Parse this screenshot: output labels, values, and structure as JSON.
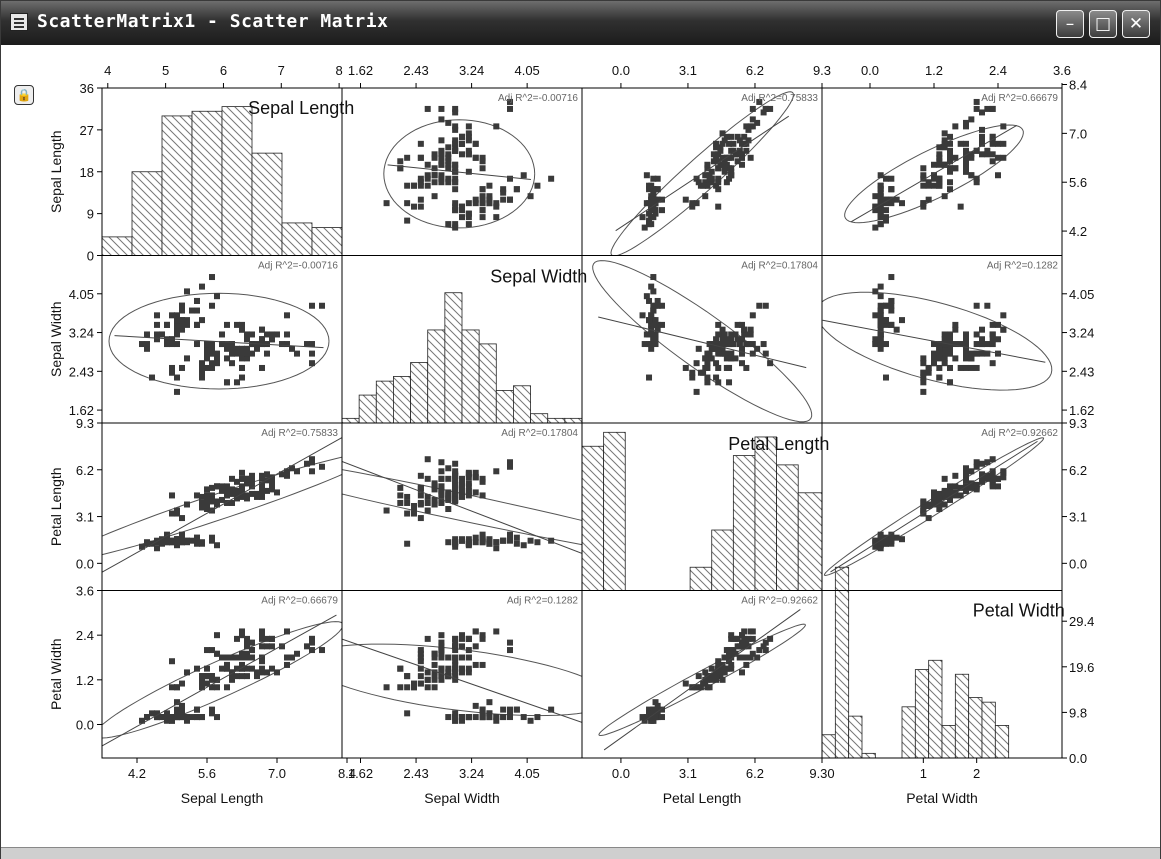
{
  "window": {
    "title": "ScatterMatrix1 - Scatter Matrix",
    "minimize_glyph": "–",
    "maximize_glyph": "□",
    "close_glyph": "✕",
    "lock_glyph": "🔒"
  },
  "colors": {
    "frame": "#000000",
    "marker": "#3a3a3a",
    "ellipse": "#555555",
    "hatch": "#777777"
  },
  "chart_data": {
    "type": "scatter",
    "variables": [
      "Sepal Length",
      "Sepal Width",
      "Petal Length",
      "Petal Width"
    ],
    "axis_labels": {
      "bottom": [
        "Sepal Length",
        "Sepal Width",
        "Petal Length",
        "Petal Width"
      ],
      "left": [
        "Sepal Length",
        "Sepal Width",
        "Petal Length",
        "Petal Width"
      ]
    },
    "value_ranges": [
      [
        3.5,
        8.3
      ],
      [
        1.35,
        4.85
      ],
      [
        -1.8,
        9.3
      ],
      [
        -0.9,
        3.6
      ]
    ],
    "bottom_ticks": [
      [
        4.2,
        5.6,
        7.0,
        8.4
      ],
      [
        1.62,
        2.43,
        3.24,
        4.05
      ],
      [
        0.0,
        3.1,
        6.2,
        9.3
      ],
      [
        1,
        2
      ]
    ],
    "bottom_tick_labels": [
      [
        "4.2",
        "5.6",
        "7.0",
        "8.4"
      ],
      [
        "1.62",
        "2.43",
        "3.24",
        "4.05"
      ],
      [
        "0.0",
        "3.1",
        "6.2",
        "9.30"
      ],
      [
        "1",
        "2"
      ]
    ],
    "top_ticks": [
      [
        4,
        5,
        6,
        7,
        8
      ],
      [
        1.62,
        2.43,
        3.24,
        4.05
      ],
      [
        0.0,
        3.1,
        6.2,
        9.3
      ],
      [
        0.0,
        1.2,
        2.4,
        3.6
      ]
    ],
    "top_tick_labels": [
      [
        "4",
        "5",
        "6",
        "7",
        "8"
      ],
      [
        "1.62",
        "2.43",
        "3.24",
        "4.05"
      ],
      [
        "0.0",
        "3.1",
        "6.2",
        "9.3"
      ],
      [
        "0.0",
        "1.2",
        "2.4",
        "3.6"
      ]
    ],
    "left_ticks": [
      [
        0,
        9,
        18,
        27,
        36
      ],
      [
        1.62,
        2.43,
        3.24,
        4.05
      ],
      [
        0.0,
        3.1,
        6.2,
        9.3
      ],
      [
        0.0,
        1.2,
        2.4,
        3.6
      ]
    ],
    "left_tick_labels": [
      [
        "0",
        "9",
        "18",
        "27",
        "36"
      ],
      [
        "1.62",
        "2.43",
        "3.24",
        "4.05"
      ],
      [
        "0.0",
        "3.1",
        "6.2",
        "9.3"
      ],
      [
        "0.0",
        "1.2",
        "2.4",
        "3.6"
      ]
    ],
    "right_ticks": [
      [
        4.2,
        5.6,
        7.0,
        8.4
      ],
      [
        1.62,
        2.43,
        3.24,
        4.05
      ],
      [
        0.0,
        3.1,
        6.2,
        9.3
      ],
      [
        0.0,
        9.8,
        19.6,
        29.4
      ]
    ],
    "right_tick_labels": [
      [
        "4.2",
        "5.6",
        "7.0",
        "8.4"
      ],
      [
        "1.62",
        "2.43",
        "3.24",
        "4.05"
      ],
      [
        "0.0",
        "3.1",
        "6.2",
        "9.3"
      ],
      [
        "0.0",
        "9.8",
        "19.6",
        "29.4"
      ]
    ],
    "diagonal_titles": [
      "Sepal Length",
      "Sepal Width",
      "Petal Length",
      "Petal Width"
    ],
    "histograms": [
      {
        "variable": "Sepal Length",
        "ymax": 36,
        "bin_edges": [
          3.5,
          4.1,
          4.7,
          5.3,
          5.9,
          6.5,
          7.1,
          7.7,
          8.3
        ],
        "counts": [
          4,
          18,
          30,
          31,
          32,
          22,
          7,
          6
        ]
      },
      {
        "variable": "Sepal Width",
        "ymax": 36,
        "bin_edges": [
          1.35,
          1.6,
          1.85,
          2.1,
          2.35,
          2.6,
          2.85,
          3.1,
          3.35,
          3.6,
          3.85,
          4.1,
          4.35,
          4.6,
          4.85
        ],
        "counts": [
          1,
          6,
          9,
          10,
          13,
          20,
          28,
          20,
          17,
          7,
          8,
          2,
          1,
          1
        ]
      },
      {
        "variable": "Petal Length",
        "ymax": 36,
        "bin_edges": [
          -1.8,
          -0.8,
          0.2,
          1.2,
          2.2,
          3.2,
          4.2,
          5.2,
          6.2,
          7.2,
          8.2,
          9.3
        ],
        "counts": [
          31,
          34,
          0,
          0,
          0,
          5,
          13,
          29,
          33,
          27,
          21
        ]
      },
      {
        "variable": "Petal Width",
        "ymax": 36,
        "bin_edges": [
          -0.9,
          -0.65,
          -0.4,
          -0.15,
          0.1,
          0.35,
          0.6,
          0.85,
          1.1,
          1.35,
          1.6,
          1.85,
          2.1,
          2.35,
          2.6
        ],
        "counts": [
          5,
          41,
          9,
          1,
          0,
          0,
          11,
          19,
          21,
          7,
          18,
          13,
          12,
          7
        ]
      }
    ],
    "cells": [
      {
        "row": 0,
        "col": 1,
        "r2_label": "Adj R^2=-0.00716",
        "x_var": "Sepal Width",
        "y_var": "Sepal Length",
        "slope": -0.2,
        "intercept": 6.5,
        "ellipse": {
          "cx": 3.06,
          "cy": 5.84,
          "a": 1.1,
          "b": 1.55,
          "angle": 0
        }
      },
      {
        "row": 0,
        "col": 2,
        "r2_label": "Adj R^2=0.75833",
        "x_var": "Petal Length",
        "y_var": "Sepal Length",
        "slope": 0.41,
        "intercept": 4.31,
        "ellipse": {
          "cx": 3.76,
          "cy": 5.84,
          "a": 4.8,
          "b": 0.55,
          "angle": 0.5
        }
      },
      {
        "row": 0,
        "col": 3,
        "r2_label": "Adj R^2=0.66679",
        "x_var": "Petal Width",
        "y_var": "Sepal Length",
        "slope": 0.89,
        "intercept": 4.78,
        "ellipse": {
          "cx": 1.2,
          "cy": 5.84,
          "a": 2.1,
          "b": 0.6,
          "angle": 0.68
        }
      },
      {
        "row": 1,
        "col": 0,
        "r2_label": "Adj R^2=-0.00716",
        "x_var": "Sepal Length",
        "y_var": "Sepal Width",
        "slope": -0.06,
        "intercept": 3.4,
        "ellipse": {
          "cx": 5.84,
          "cy": 3.06,
          "a": 2.2,
          "b": 1.0,
          "angle": 0
        }
      },
      {
        "row": 1,
        "col": 2,
        "r2_label": "Adj R^2=0.17804",
        "x_var": "Petal Length",
        "y_var": "Sepal Width",
        "slope": -0.11,
        "intercept": 3.45,
        "ellipse": {
          "cx": 3.76,
          "cy": 3.06,
          "a": 5.3,
          "b": 0.65,
          "angle": -0.3
        }
      },
      {
        "row": 1,
        "col": 3,
        "r2_label": "Adj R^2=0.1282",
        "x_var": "Petal Width",
        "y_var": "Sepal Width",
        "slope": -0.21,
        "intercept": 3.31,
        "ellipse": {
          "cx": 1.2,
          "cy": 3.06,
          "a": 2.3,
          "b": 0.8,
          "angle": -0.3
        }
      },
      {
        "row": 2,
        "col": 0,
        "r2_label": "Adj R^2=0.75833",
        "x_var": "Sepal Length",
        "y_var": "Petal Length",
        "slope": 1.86,
        "intercept": -7.1,
        "ellipse": {
          "cx": 5.84,
          "cy": 3.76,
          "a": 4.8,
          "b": 0.6,
          "angle": 0.85
        }
      },
      {
        "row": 2,
        "col": 1,
        "r2_label": "Adj R^2=0.17804",
        "x_var": "Sepal Width",
        "y_var": "Petal Length",
        "slope": -1.74,
        "intercept": 9.1,
        "ellipse": {
          "cx": 3.06,
          "cy": 3.76,
          "a": 5.3,
          "b": 0.65,
          "angle": -0.78
        }
      },
      {
        "row": 2,
        "col": 3,
        "r2_label": "Adj R^2=0.92662",
        "x_var": "Petal Width",
        "y_var": "Petal Length",
        "slope": 2.23,
        "intercept": 1.08,
        "ellipse": {
          "cx": 1.2,
          "cy": 3.76,
          "a": 5.0,
          "b": 0.25,
          "angle": 1.15
        }
      },
      {
        "row": 3,
        "col": 0,
        "r2_label": "Adj R^2=0.66679",
        "x_var": "Sepal Length",
        "y_var": "Petal Width",
        "slope": 0.75,
        "intercept": -3.2,
        "ellipse": {
          "cx": 5.84,
          "cy": 1.2,
          "a": 2.9,
          "b": 0.45,
          "angle": 0.55
        }
      },
      {
        "row": 3,
        "col": 1,
        "r2_label": "Adj R^2=0.1282",
        "x_var": "Sepal Width",
        "y_var": "Petal Width",
        "slope": -0.64,
        "intercept": 3.16,
        "ellipse": {
          "cx": 3.06,
          "cy": 1.2,
          "a": 2.3,
          "b": 0.8,
          "angle": -0.25
        }
      },
      {
        "row": 3,
        "col": 2,
        "r2_label": "Adj R^2=0.92662",
        "x_var": "Petal Length",
        "y_var": "Petal Width",
        "slope": 0.416,
        "intercept": -0.36,
        "ellipse": {
          "cx": 3.76,
          "cy": 1.2,
          "a": 5.0,
          "b": 0.25,
          "angle": 0.3
        }
      }
    ],
    "points": {
      "species_A": {
        "Sepal Length": [
          5.1,
          4.9,
          4.7,
          4.6,
          5.0,
          5.4,
          4.6,
          5.0,
          4.4,
          4.9,
          5.4,
          4.8,
          4.8,
          4.3,
          5.8,
          5.7,
          5.4,
          5.1,
          5.7,
          5.1,
          5.4,
          5.1,
          4.6,
          5.1,
          4.8,
          5.0,
          5.0,
          5.2,
          5.2,
          4.7,
          4.8,
          5.4,
          5.2,
          5.5,
          4.9,
          5.0,
          5.5,
          4.9,
          4.4,
          5.1,
          5.0,
          4.5,
          4.4,
          5.0,
          5.1,
          4.8,
          5.1,
          4.6,
          5.3,
          5.0
        ],
        "Sepal Width": [
          3.5,
          3.0,
          3.2,
          3.1,
          3.6,
          3.9,
          3.4,
          3.4,
          2.9,
          3.1,
          3.7,
          3.4,
          3.0,
          3.0,
          4.0,
          4.4,
          3.9,
          3.5,
          3.8,
          3.8,
          3.4,
          3.7,
          3.6,
          3.3,
          3.4,
          3.0,
          3.4,
          3.5,
          3.4,
          3.2,
          3.1,
          3.4,
          4.1,
          4.2,
          3.1,
          3.2,
          3.5,
          3.6,
          3.0,
          3.4,
          3.5,
          2.3,
          3.2,
          3.5,
          3.8,
          3.0,
          3.8,
          3.2,
          3.7,
          3.3
        ],
        "Petal Length": [
          1.4,
          1.4,
          1.3,
          1.5,
          1.4,
          1.7,
          1.4,
          1.5,
          1.4,
          1.5,
          1.5,
          1.6,
          1.4,
          1.1,
          1.2,
          1.5,
          1.3,
          1.4,
          1.7,
          1.5,
          1.7,
          1.5,
          1.0,
          1.7,
          1.9,
          1.6,
          1.6,
          1.5,
          1.4,
          1.6,
          1.6,
          1.5,
          1.5,
          1.4,
          1.5,
          1.2,
          1.3,
          1.4,
          1.3,
          1.5,
          1.3,
          1.3,
          1.3,
          1.6,
          1.9,
          1.4,
          1.6,
          1.4,
          1.5,
          1.4
        ],
        "Petal Width": [
          0.2,
          0.2,
          0.2,
          0.2,
          0.2,
          0.4,
          0.3,
          0.2,
          0.2,
          0.1,
          0.2,
          0.2,
          0.1,
          0.1,
          0.2,
          0.4,
          0.4,
          0.3,
          0.3,
          0.3,
          0.2,
          0.4,
          0.2,
          0.5,
          0.2,
          0.2,
          0.4,
          0.2,
          0.2,
          0.2,
          0.2,
          0.4,
          0.1,
          0.2,
          0.2,
          0.2,
          0.2,
          0.1,
          0.2,
          0.2,
          0.3,
          0.3,
          0.2,
          0.6,
          0.4,
          0.3,
          0.2,
          0.2,
          0.2,
          0.2
        ]
      },
      "species_B": {
        "Sepal Length": [
          7.0,
          6.4,
          6.9,
          5.5,
          6.5,
          5.7,
          6.3,
          4.9,
          6.6,
          5.2,
          5.0,
          5.9,
          6.0,
          6.1,
          5.6,
          6.7,
          5.6,
          5.8,
          6.2,
          5.6,
          5.9,
          6.1,
          6.3,
          6.1,
          6.4,
          6.6,
          6.8,
          6.7,
          6.0,
          5.7,
          5.5,
          5.5,
          5.8,
          6.0,
          5.4,
          6.0,
          6.7,
          6.3,
          5.6,
          5.5,
          5.5,
          6.1,
          5.8,
          5.0,
          5.6,
          5.7,
          5.7,
          6.2,
          5.1,
          5.7
        ],
        "Sepal Width": [
          3.2,
          3.2,
          3.1,
          2.3,
          2.8,
          2.8,
          3.3,
          2.4,
          2.9,
          2.7,
          2.0,
          3.0,
          2.2,
          2.9,
          2.9,
          3.1,
          3.0,
          2.7,
          2.2,
          2.5,
          3.2,
          2.8,
          2.5,
          2.8,
          2.9,
          3.0,
          2.8,
          3.0,
          2.9,
          2.6,
          2.4,
          2.4,
          2.7,
          2.7,
          3.0,
          3.4,
          3.1,
          2.3,
          3.0,
          2.5,
          2.6,
          3.0,
          2.6,
          2.3,
          2.7,
          3.0,
          2.9,
          2.9,
          2.5,
          2.8
        ],
        "Petal Length": [
          4.7,
          4.5,
          4.9,
          4.0,
          4.6,
          4.5,
          4.7,
          3.3,
          4.6,
          3.9,
          3.5,
          4.2,
          4.0,
          4.7,
          3.6,
          4.4,
          4.5,
          4.1,
          4.5,
          3.9,
          4.8,
          4.0,
          4.9,
          4.7,
          4.3,
          4.4,
          4.8,
          5.0,
          4.5,
          3.5,
          3.8,
          3.7,
          3.9,
          5.1,
          4.5,
          4.5,
          4.7,
          4.4,
          4.1,
          4.0,
          4.4,
          4.6,
          4.0,
          3.3,
          4.2,
          4.2,
          4.2,
          4.3,
          3.0,
          4.1
        ],
        "Petal Width": [
          1.4,
          1.5,
          1.5,
          1.3,
          1.5,
          1.3,
          1.6,
          1.0,
          1.3,
          1.4,
          1.0,
          1.5,
          1.0,
          1.4,
          1.3,
          1.4,
          1.5,
          1.0,
          1.5,
          1.1,
          1.8,
          1.3,
          1.5,
          1.2,
          1.3,
          1.4,
          1.4,
          1.7,
          1.5,
          1.0,
          1.1,
          1.0,
          1.2,
          1.6,
          1.5,
          1.6,
          1.5,
          1.3,
          1.3,
          1.3,
          1.2,
          1.4,
          1.2,
          1.0,
          1.3,
          1.2,
          1.3,
          1.3,
          1.1,
          1.3
        ]
      },
      "species_C": {
        "Sepal Length": [
          6.3,
          5.8,
          7.1,
          6.3,
          6.5,
          7.6,
          4.9,
          7.3,
          6.7,
          7.2,
          6.5,
          6.4,
          6.8,
          5.7,
          5.8,
          6.4,
          6.5,
          7.7,
          7.7,
          6.0,
          6.9,
          5.6,
          7.7,
          6.3,
          6.7,
          7.2,
          6.2,
          6.1,
          6.4,
          7.2,
          7.4,
          7.9,
          6.4,
          6.3,
          6.1,
          7.7,
          6.3,
          6.4,
          6.0,
          6.9,
          6.7,
          6.9,
          5.8,
          6.8,
          6.7,
          6.7,
          6.3,
          6.5,
          6.2,
          5.9
        ],
        "Sepal Width": [
          3.3,
          2.7,
          3.0,
          2.9,
          3.0,
          3.0,
          2.5,
          2.9,
          2.5,
          3.6,
          3.2,
          2.7,
          3.0,
          2.5,
          2.8,
          3.2,
          3.0,
          3.8,
          2.6,
          2.2,
          3.2,
          2.8,
          2.8,
          2.7,
          3.3,
          3.2,
          2.8,
          3.0,
          2.8,
          3.0,
          2.8,
          3.8,
          2.8,
          2.8,
          2.6,
          3.0,
          3.4,
          3.1,
          3.0,
          3.1,
          3.1,
          3.1,
          2.7,
          3.2,
          3.3,
          3.0,
          2.5,
          3.0,
          3.4,
          3.0
        ],
        "Petal Length": [
          6.0,
          5.1,
          5.9,
          5.6,
          5.8,
          6.6,
          4.5,
          6.3,
          5.8,
          6.1,
          5.1,
          5.3,
          5.5,
          5.0,
          5.1,
          5.3,
          5.5,
          6.7,
          6.9,
          5.0,
          5.7,
          4.9,
          6.7,
          4.9,
          5.7,
          6.0,
          4.8,
          4.9,
          5.6,
          5.8,
          6.1,
          6.4,
          5.6,
          5.1,
          5.6,
          6.1,
          5.6,
          5.5,
          4.8,
          5.4,
          5.6,
          5.1,
          5.1,
          5.9,
          5.7,
          5.2,
          5.0,
          5.2,
          5.4,
          5.1
        ],
        "Petal Width": [
          2.5,
          1.9,
          2.1,
          1.8,
          2.2,
          2.1,
          1.7,
          1.8,
          1.8,
          2.5,
          2.0,
          1.9,
          2.1,
          2.0,
          2.4,
          2.3,
          1.8,
          2.2,
          2.3,
          1.5,
          2.3,
          2.0,
          2.0,
          1.8,
          2.1,
          1.8,
          1.8,
          1.8,
          2.1,
          1.6,
          1.9,
          2.0,
          2.2,
          1.5,
          1.4,
          2.3,
          2.4,
          1.8,
          1.8,
          2.1,
          2.4,
          2.3,
          1.9,
          2.3,
          2.5,
          2.3,
          1.9,
          2.0,
          2.3,
          1.8
        ]
      }
    }
  }
}
